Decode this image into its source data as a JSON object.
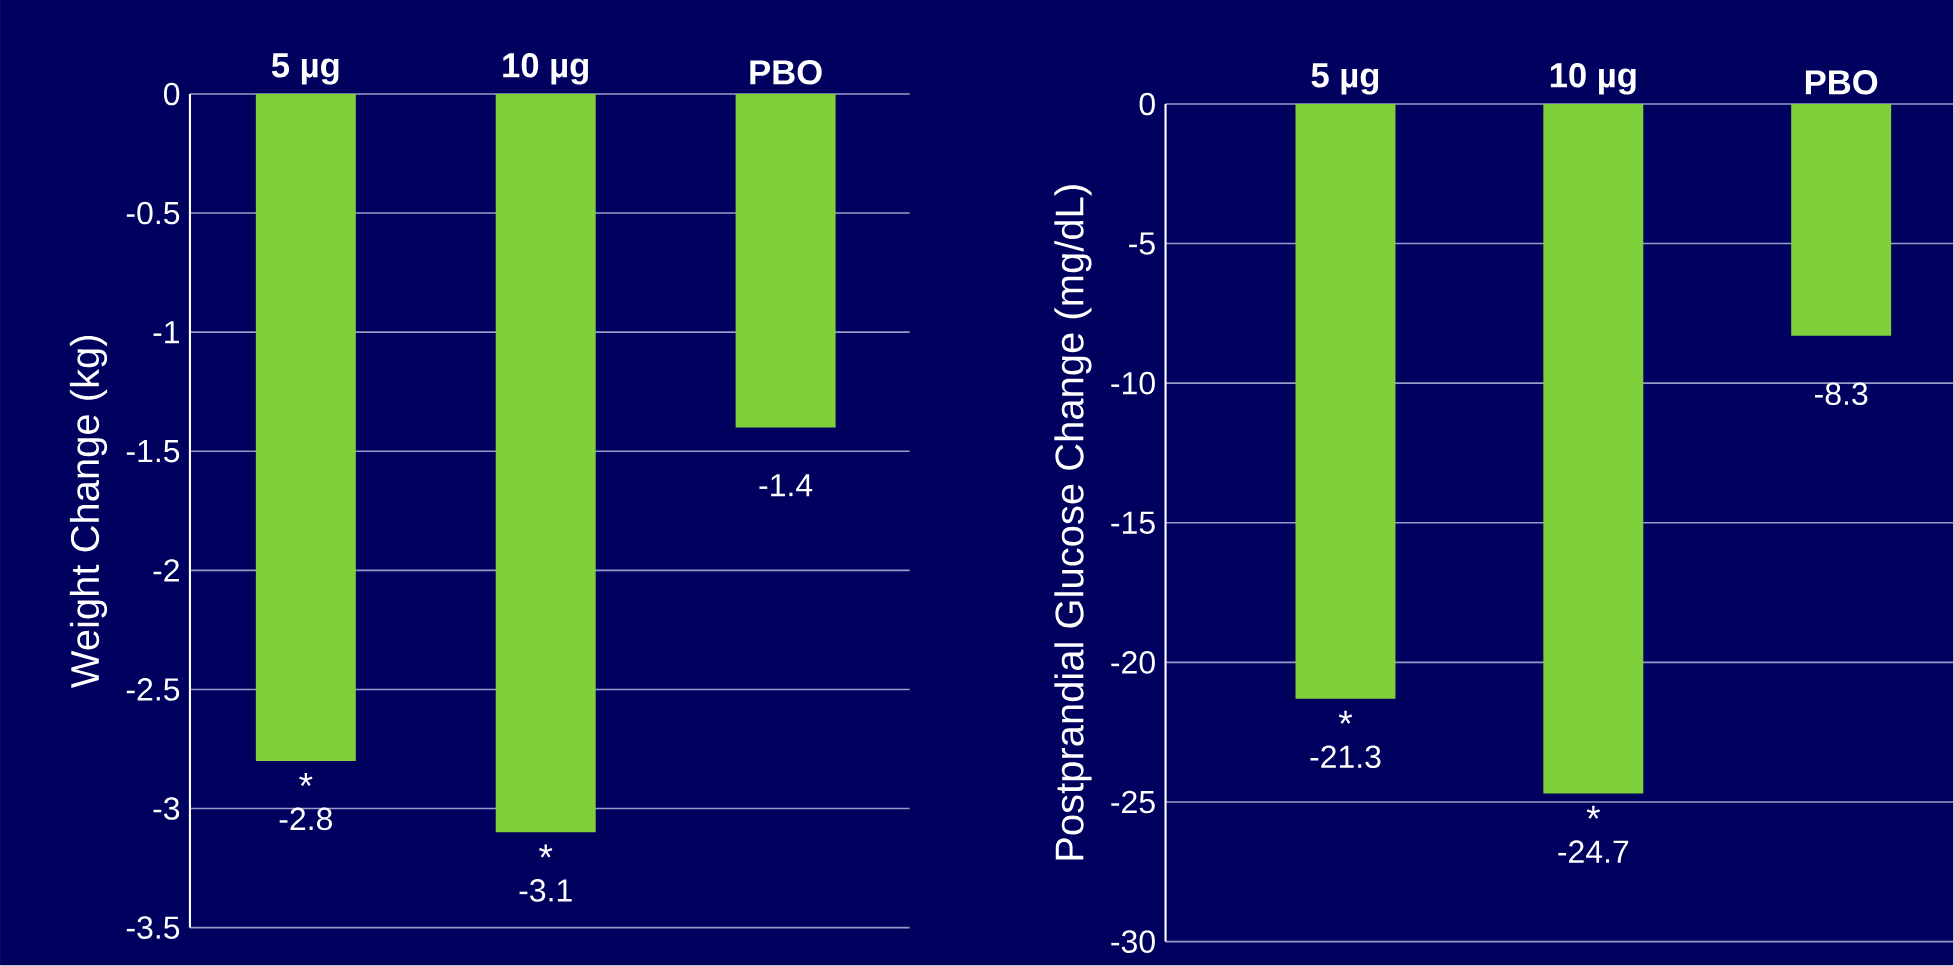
{
  "chart_data": [
    {
      "type": "bar",
      "ylabel": "Weight Change (kg)",
      "categories": [
        "5 µg",
        "10 µg",
        "PBO"
      ],
      "values": [
        -2.8,
        -3.1,
        -1.4
      ],
      "color": "#7fd13b",
      "ylim": [
        -3.5,
        0
      ],
      "yticks": [
        0,
        -0.5,
        -1,
        -1.5,
        -2,
        -2.5,
        -3,
        -3.5
      ],
      "grid": "y",
      "data_labels": true,
      "annotations": [
        {
          "text": "*",
          "x": "5 µg",
          "y": -2.8
        },
        {
          "text": "*",
          "x": "10 µg",
          "y": -3.1
        }
      ]
    },
    {
      "type": "bar",
      "ylabel": "Postprandial Glucose Change (mg/dL)",
      "categories": [
        "5 µg",
        "10 µg",
        "PBO"
      ],
      "values": [
        -21.3,
        -24.7,
        -8.3
      ],
      "color": "#7fd13b",
      "ylim": [
        -30,
        0
      ],
      "yticks": [
        0,
        -5,
        -10,
        -15,
        -20,
        -25,
        -30
      ],
      "grid": "y",
      "data_labels": true,
      "annotations": [
        {
          "text": "*",
          "x": "5 µg",
          "y": -21.3
        },
        {
          "text": "*",
          "x": "10 µg",
          "y": -24.7
        }
      ]
    }
  ]
}
